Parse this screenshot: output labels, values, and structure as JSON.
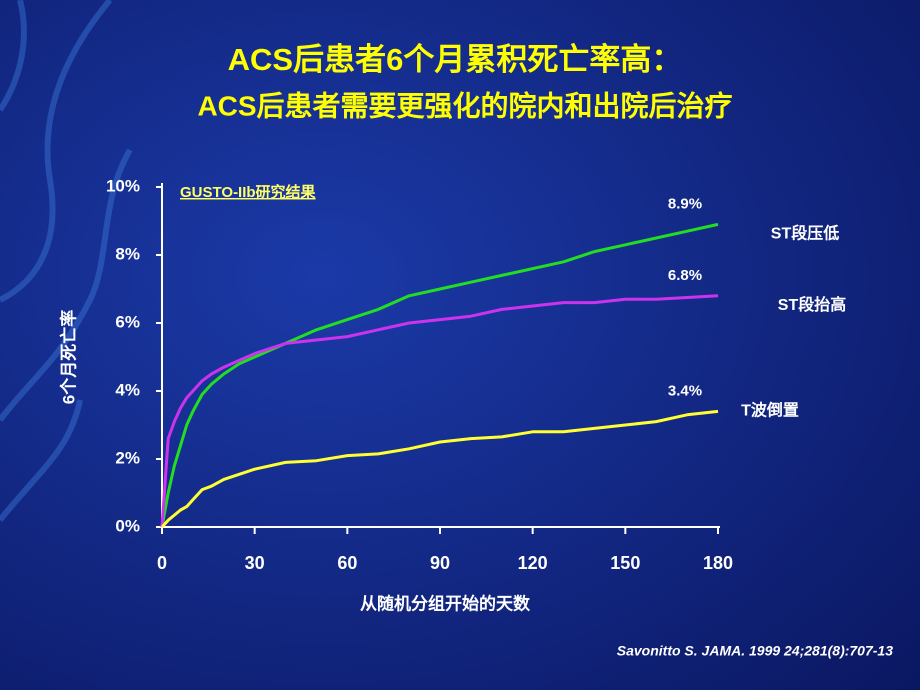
{
  "chart_data": {
    "type": "line",
    "title": "ACS后患者6个月累积死亡率高：",
    "subtitle": "ACS后患者需要更强化的院内和出院后治疗",
    "annotation": "GUSTO-IIb研究结果",
    "source": "Savonitto S. JAMA. 1999 24;281(8):707-13",
    "x_label": "从随机分组开始的天数",
    "y_label": "6个月死亡率",
    "x": [
      0,
      2,
      4,
      6,
      8,
      10,
      13,
      16,
      20,
      25,
      30,
      40,
      50,
      60,
      70,
      80,
      90,
      100,
      110,
      120,
      130,
      140,
      150,
      160,
      170,
      180
    ],
    "series": [
      {
        "name": "ST段压低",
        "color": "#22dd22",
        "values": [
          0,
          1.0,
          1.8,
          2.4,
          3.0,
          3.4,
          3.9,
          4.2,
          4.5,
          4.8,
          5.0,
          5.4,
          5.8,
          6.1,
          6.4,
          6.8,
          7.0,
          7.2,
          7.4,
          7.6,
          7.8,
          8.1,
          8.3,
          8.5,
          8.7,
          8.9
        ],
        "value_labels": [
          null,
          null,
          null,
          null,
          null,
          null,
          null,
          null,
          null,
          null,
          null,
          null,
          null,
          null,
          null,
          null,
          null,
          null,
          null,
          null,
          null,
          null,
          null,
          null,
          null,
          "8.9%"
        ]
      },
      {
        "name": "ST段抬高",
        "color": "#cc33ee",
        "values": [
          0,
          2.6,
          3.1,
          3.5,
          3.8,
          4.0,
          4.3,
          4.5,
          4.7,
          4.9,
          5.1,
          5.4,
          5.5,
          5.6,
          5.8,
          6.0,
          6.1,
          6.2,
          6.4,
          6.5,
          6.6,
          6.6,
          6.7,
          6.7,
          6.75,
          6.8
        ],
        "value_labels": [
          null,
          null,
          null,
          null,
          null,
          null,
          null,
          null,
          null,
          null,
          null,
          null,
          null,
          null,
          null,
          null,
          null,
          null,
          null,
          null,
          null,
          null,
          null,
          null,
          null,
          "6.8%"
        ]
      },
      {
        "name": "T波倒置",
        "color": "#ffff33",
        "values": [
          0,
          0.2,
          0.35,
          0.5,
          0.6,
          0.8,
          1.1,
          1.2,
          1.4,
          1.55,
          1.7,
          1.9,
          1.95,
          2.1,
          2.15,
          2.3,
          2.5,
          2.6,
          2.65,
          2.8,
          2.8,
          2.9,
          3.0,
          3.1,
          3.3,
          3.4
        ],
        "value_labels": [
          null,
          null,
          null,
          null,
          null,
          null,
          null,
          null,
          null,
          null,
          null,
          null,
          null,
          null,
          null,
          null,
          null,
          null,
          null,
          null,
          null,
          null,
          null,
          null,
          null,
          "3.4%"
        ]
      }
    ],
    "xlim": [
      0,
      180
    ],
    "xticks": [
      0,
      30,
      60,
      90,
      120,
      150,
      180
    ],
    "ylim": [
      0,
      10
    ],
    "yticks": [
      {
        "value": 0,
        "label": "0%"
      },
      {
        "value": 2,
        "label": "2%"
      },
      {
        "value": 4,
        "label": "4%"
      },
      {
        "value": 6,
        "label": "6%"
      },
      {
        "value": 8,
        "label": "8%"
      },
      {
        "value": 10,
        "label": "10%"
      }
    ],
    "grid": false
  }
}
